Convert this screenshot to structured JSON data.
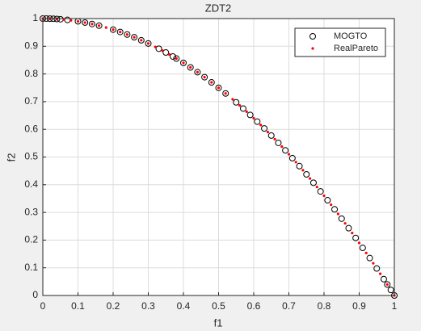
{
  "chart_data": {
    "type": "scatter",
    "title": "ZDT2",
    "x_label": "f1",
    "y_label": "f2",
    "xlim": [
      0,
      1
    ],
    "ylim": [
      0,
      1
    ],
    "xticks": [
      0,
      0.1,
      0.2,
      0.3,
      0.4,
      0.5,
      0.6,
      0.7,
      0.8,
      0.9,
      1
    ],
    "yticks": [
      0,
      0.1,
      0.2,
      0.3,
      0.4,
      0.5,
      0.6,
      0.7,
      0.8,
      0.9,
      1
    ],
    "grid": true,
    "legend_position": "northeast",
    "series": [
      {
        "name": "MOGTO",
        "color": "#000000",
        "marker": "circle",
        "x": [
          0,
          0.01,
          0.02,
          0.03,
          0.04,
          0.05,
          0.07,
          0.1,
          0.12,
          0.14,
          0.16,
          0.2,
          0.22,
          0.24,
          0.26,
          0.28,
          0.3,
          0.33,
          0.35,
          0.37,
          0.38,
          0.4,
          0.42,
          0.44,
          0.46,
          0.48,
          0.5,
          0.52,
          0.55,
          0.57,
          0.59,
          0.61,
          0.63,
          0.65,
          0.67,
          0.69,
          0.71,
          0.73,
          0.75,
          0.77,
          0.79,
          0.81,
          0.83,
          0.85,
          0.87,
          0.89,
          0.91,
          0.93,
          0.95,
          0.97,
          0.98,
          0.99,
          1
        ],
        "y": [
          1,
          0.9999,
          0.9996,
          0.9991,
          0.9984,
          0.9975,
          0.9951,
          0.99,
          0.9856,
          0.9804,
          0.9744,
          0.96,
          0.9516,
          0.9424,
          0.9324,
          0.9216,
          0.91,
          0.8911,
          0.8775,
          0.8631,
          0.8556,
          0.84,
          0.8236,
          0.8064,
          0.7884,
          0.7696,
          0.75,
          0.7296,
          0.6975,
          0.6751,
          0.6519,
          0.6279,
          0.6031,
          0.5775,
          0.5511,
          0.5239,
          0.4959,
          0.4671,
          0.4375,
          0.4071,
          0.3759,
          0.3439,
          0.3111,
          0.2775,
          0.2431,
          0.2079,
          0.1719,
          0.1351,
          0.0975,
          0.0591,
          0.0396,
          0.0199,
          0
        ]
      },
      {
        "name": "RealPareto",
        "color": "#ff0000",
        "marker": "dot",
        "x": [
          0,
          0.02,
          0.04,
          0.06,
          0.08,
          0.1,
          0.12,
          0.14,
          0.16,
          0.18,
          0.2,
          0.22,
          0.24,
          0.26,
          0.28,
          0.3,
          0.32,
          0.34,
          0.36,
          0.38,
          0.4,
          0.42,
          0.44,
          0.46,
          0.48,
          0.5,
          0.52,
          0.54,
          0.56,
          0.58,
          0.6,
          0.62,
          0.64,
          0.66,
          0.68,
          0.7,
          0.72,
          0.74,
          0.76,
          0.78,
          0.8,
          0.82,
          0.84,
          0.86,
          0.88,
          0.9,
          0.92,
          0.94,
          0.96,
          0.98,
          1
        ],
        "y": [
          1,
          0.9996,
          0.9984,
          0.9964,
          0.9936,
          0.99,
          0.9856,
          0.9804,
          0.9744,
          0.9676,
          0.96,
          0.9516,
          0.9424,
          0.9324,
          0.9216,
          0.91,
          0.8976,
          0.8844,
          0.8704,
          0.8556,
          0.84,
          0.8236,
          0.8064,
          0.7884,
          0.7696,
          0.75,
          0.7296,
          0.7084,
          0.6864,
          0.6636,
          0.64,
          0.6156,
          0.5904,
          0.5644,
          0.5376,
          0.51,
          0.4816,
          0.4524,
          0.4224,
          0.3916,
          0.36,
          0.3276,
          0.2944,
          0.2604,
          0.2256,
          0.19,
          0.1536,
          0.1164,
          0.0784,
          0.0396,
          0
        ]
      }
    ]
  }
}
